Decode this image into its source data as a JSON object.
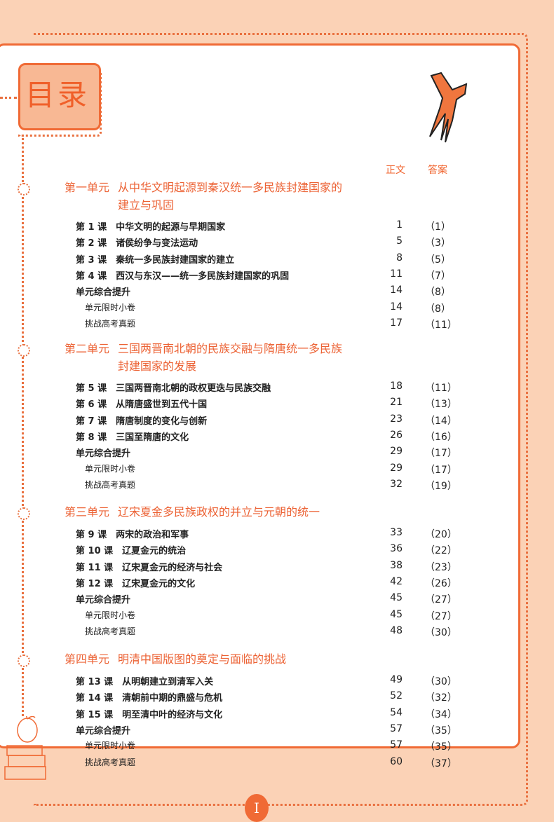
{
  "title": "目录",
  "columns": {
    "body": "正文",
    "answer": "答案"
  },
  "page_number": "I",
  "units": [
    {
      "label": "第一单元",
      "title": [
        "从中华文明起源到秦汉统一多民族封建国家的",
        "建立与巩固"
      ],
      "rows": [
        {
          "name": "第 1 课　中华文明的起源与早期国家",
          "page": "1",
          "answer": "（1）"
        },
        {
          "name": "第 2 课　诸侯纷争与变法运动",
          "page": "5",
          "answer": "（3）"
        },
        {
          "name": "第 3 课　秦统一多民族封建国家的建立",
          "page": "8",
          "answer": "（5）"
        },
        {
          "name": "第 4 课　西汉与东汉——统一多民族封建国家的巩固",
          "page": "11",
          "answer": "（7）"
        },
        {
          "name": "单元综合提升",
          "page": "14",
          "answer": "（8）"
        },
        {
          "name": "单元限时小卷",
          "page": "14",
          "answer": "（8）",
          "sub": true
        },
        {
          "name": "挑战高考真题",
          "page": "17",
          "answer": "（11）",
          "sub": true
        }
      ]
    },
    {
      "label": "第二单元",
      "title": [
        "三国两晋南北朝的民族交融与隋唐统一多民族",
        "封建国家的发展"
      ],
      "rows": [
        {
          "name": "第 5 课　三国两晋南北朝的政权更迭与民族交融",
          "page": "18",
          "answer": "（11）"
        },
        {
          "name": "第 6 课　从隋唐盛世到五代十国",
          "page": "21",
          "answer": "（13）"
        },
        {
          "name": "第 7 课　隋唐制度的变化与创新",
          "page": "23",
          "answer": "（14）"
        },
        {
          "name": "第 8 课　三国至隋唐的文化",
          "page": "26",
          "answer": "（16）"
        },
        {
          "name": "单元综合提升",
          "page": "29",
          "answer": "（17）"
        },
        {
          "name": "单元限时小卷",
          "page": "29",
          "answer": "（17）",
          "sub": true
        },
        {
          "name": "挑战高考真题",
          "page": "32",
          "answer": "（19）",
          "sub": true
        }
      ]
    },
    {
      "label": "第三单元",
      "title": [
        "辽宋夏金多民族政权的并立与元朝的统一"
      ],
      "rows": [
        {
          "name": "第 9 课　两宋的政治和军事",
          "page": "33",
          "answer": "（20）"
        },
        {
          "name": "第 10 课　辽夏金元的统治",
          "page": "36",
          "answer": "（22）"
        },
        {
          "name": "第 11 课　辽宋夏金元的经济与社会",
          "page": "38",
          "answer": "（23）"
        },
        {
          "name": "第 12 课　辽宋夏金元的文化",
          "page": "42",
          "answer": "（26）"
        },
        {
          "name": "单元综合提升",
          "page": "45",
          "answer": "（27）"
        },
        {
          "name": "单元限时小卷",
          "page": "45",
          "answer": "（27）",
          "sub": true
        },
        {
          "name": "挑战高考真题",
          "page": "48",
          "answer": "（30）",
          "sub": true
        }
      ]
    },
    {
      "label": "第四单元",
      "title": [
        "明清中国版图的奠定与面临的挑战"
      ],
      "rows": [
        {
          "name": "第 13 课　从明朝建立到清军入关",
          "page": "49",
          "answer": "（30）"
        },
        {
          "name": "第 14 课　清朝前中期的鼎盛与危机",
          "page": "52",
          "answer": "（32）"
        },
        {
          "name": "第 15 课　明至清中叶的经济与文化",
          "page": "54",
          "answer": "（34）"
        },
        {
          "name": "单元综合提升",
          "page": "57",
          "answer": "（35）"
        },
        {
          "name": "单元限时小卷",
          "page": "57",
          "answer": "（35）",
          "sub": true
        },
        {
          "name": "挑战高考真题",
          "page": "60",
          "answer": "（37）",
          "sub": true
        }
      ]
    }
  ]
}
